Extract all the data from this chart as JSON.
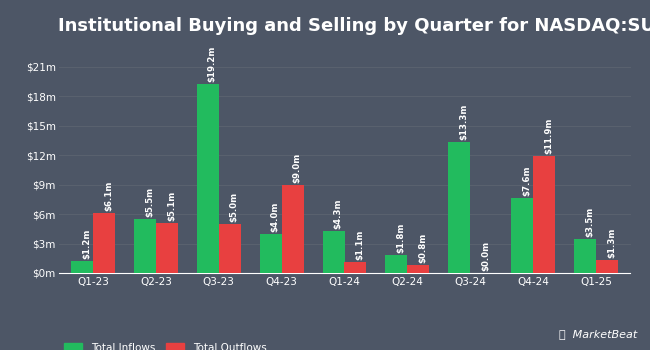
{
  "title": "Institutional Buying and Selling by Quarter for NASDAQ:SUSB",
  "categories": [
    "Q1-23",
    "Q2-23",
    "Q3-23",
    "Q4-23",
    "Q1-24",
    "Q2-24",
    "Q3-24",
    "Q4-24",
    "Q1-25"
  ],
  "inflows": [
    1.2,
    5.5,
    19.2,
    4.0,
    4.3,
    1.8,
    13.3,
    7.6,
    3.5
  ],
  "outflows": [
    6.1,
    5.1,
    5.0,
    9.0,
    1.1,
    0.8,
    0.0,
    11.9,
    1.3
  ],
  "inflow_labels": [
    "$1.2m",
    "$5.5m",
    "$19.2m",
    "$4.0m",
    "$4.3m",
    "$1.8m",
    "$13.3m",
    "$7.6m",
    "$3.5m"
  ],
  "outflow_labels": [
    "$6.1m",
    "$5.1m",
    "$5.0m",
    "$9.0m",
    "$1.1m",
    "$0.8m",
    "$0.0m",
    "$11.9m",
    "$1.3m"
  ],
  "inflow_color": "#22bb5e",
  "outflow_color": "#e84040",
  "bg_color": "#4d5666",
  "text_color": "#ffffff",
  "grid_color": "#5c6470",
  "yticks": [
    0,
    3,
    6,
    9,
    12,
    15,
    18,
    21
  ],
  "ytick_labels": [
    "$0m",
    "$3m",
    "$6m",
    "$9m",
    "$12m",
    "$15m",
    "$18m",
    "$21m"
  ],
  "ylim": [
    0,
    23.5
  ],
  "legend_inflow": "Total Inflows",
  "legend_outflow": "Total Outflows",
  "bar_width": 0.35,
  "title_fontsize": 13,
  "label_fontsize": 6.2,
  "tick_fontsize": 7.5,
  "legend_fontsize": 7.5
}
